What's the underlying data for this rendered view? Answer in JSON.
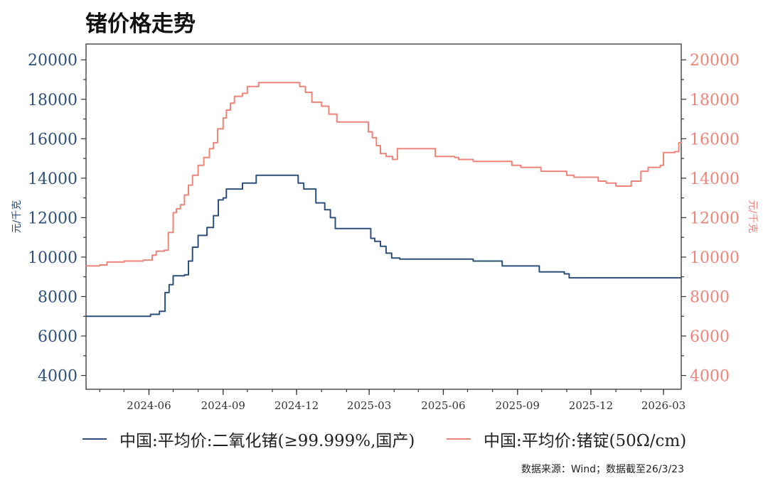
{
  "title": "锗价格走势",
  "source": "数据来源：Wind；数据截至26/3/23",
  "colors": {
    "left": "#2e4f7a",
    "right": "#ee8479"
  },
  "chart_data": {
    "type": "line",
    "title": "锗价格走势",
    "ylabel_left": "元/千克",
    "ylabel_right": "元/千克",
    "ylim": [
      3300,
      20800
    ],
    "yticks": [
      4000,
      6000,
      8000,
      10000,
      12000,
      14000,
      16000,
      18000,
      20000
    ],
    "xlim": [
      "2024-03-15",
      "2026-03-23"
    ],
    "xticks": [
      "2024-06",
      "2024-09",
      "2024-12",
      "2025-03",
      "2025-06",
      "2025-09",
      "2025-12",
      "2026-03"
    ],
    "legend_position": "bottom",
    "series": [
      {
        "name": "中国:平均价:二氧化锗(≥99.999%,国产)",
        "axis": "left",
        "points": [
          [
            "2024-03-15",
            7000
          ],
          [
            "2024-05-31",
            7000
          ],
          [
            "2024-06-03",
            7100
          ],
          [
            "2024-06-14",
            7250
          ],
          [
            "2024-06-21",
            8200
          ],
          [
            "2024-06-26",
            8600
          ],
          [
            "2024-07-01",
            9050
          ],
          [
            "2024-07-15",
            9100
          ],
          [
            "2024-07-20",
            9800
          ],
          [
            "2024-07-25",
            10500
          ],
          [
            "2024-08-01",
            11100
          ],
          [
            "2024-08-12",
            11500
          ],
          [
            "2024-08-20",
            12100
          ],
          [
            "2024-08-26",
            12900
          ],
          [
            "2024-09-01",
            13000
          ],
          [
            "2024-09-05",
            13450
          ],
          [
            "2024-09-25",
            13750
          ],
          [
            "2024-10-12",
            14150
          ],
          [
            "2024-11-28",
            14150
          ],
          [
            "2024-12-03",
            13750
          ],
          [
            "2024-12-10",
            13450
          ],
          [
            "2024-12-25",
            12750
          ],
          [
            "2025-01-05",
            12400
          ],
          [
            "2025-01-12",
            12000
          ],
          [
            "2025-01-18",
            11450
          ],
          [
            "2025-02-28",
            11450
          ],
          [
            "2025-03-03",
            10950
          ],
          [
            "2025-03-08",
            10800
          ],
          [
            "2025-03-15",
            10550
          ],
          [
            "2025-03-22",
            10200
          ],
          [
            "2025-03-29",
            9950
          ],
          [
            "2025-04-08",
            9900
          ],
          [
            "2025-07-05",
            9900
          ],
          [
            "2025-07-08",
            9800
          ],
          [
            "2025-08-10",
            9800
          ],
          [
            "2025-08-13",
            9550
          ],
          [
            "2025-09-25",
            9550
          ],
          [
            "2025-09-28",
            9250
          ],
          [
            "2025-10-25",
            9250
          ],
          [
            "2025-10-29",
            9150
          ],
          [
            "2025-11-04",
            8950
          ],
          [
            "2026-03-23",
            8950
          ]
        ]
      },
      {
        "name": "中国:平均价:锗锭(50Ω/cm)",
        "axis": "right",
        "points": [
          [
            "2024-03-15",
            9550
          ],
          [
            "2024-04-01",
            9600
          ],
          [
            "2024-04-10",
            9750
          ],
          [
            "2024-05-01",
            9800
          ],
          [
            "2024-05-25",
            9850
          ],
          [
            "2024-06-05",
            10100
          ],
          [
            "2024-06-10",
            10300
          ],
          [
            "2024-06-20",
            10350
          ],
          [
            "2024-06-25",
            11250
          ],
          [
            "2024-07-01",
            12250
          ],
          [
            "2024-07-05",
            12450
          ],
          [
            "2024-07-10",
            12650
          ],
          [
            "2024-07-15",
            13150
          ],
          [
            "2024-07-20",
            13650
          ],
          [
            "2024-07-25",
            14150
          ],
          [
            "2024-08-01",
            14650
          ],
          [
            "2024-08-08",
            15050
          ],
          [
            "2024-08-15",
            15500
          ],
          [
            "2024-08-20",
            15800
          ],
          [
            "2024-08-25",
            16500
          ],
          [
            "2024-09-01",
            17050
          ],
          [
            "2024-09-05",
            17450
          ],
          [
            "2024-09-10",
            17800
          ],
          [
            "2024-09-15",
            18150
          ],
          [
            "2024-09-25",
            18300
          ],
          [
            "2024-10-01",
            18650
          ],
          [
            "2024-10-15",
            18850
          ],
          [
            "2024-11-30",
            18850
          ],
          [
            "2024-12-05",
            18650
          ],
          [
            "2024-12-12",
            18350
          ],
          [
            "2024-12-20",
            17850
          ],
          [
            "2025-01-01",
            17650
          ],
          [
            "2025-01-10",
            17250
          ],
          [
            "2025-01-20",
            16850
          ],
          [
            "2025-02-20",
            16850
          ],
          [
            "2025-02-28",
            16350
          ],
          [
            "2025-03-05",
            16050
          ],
          [
            "2025-03-10",
            15650
          ],
          [
            "2025-03-15",
            15250
          ],
          [
            "2025-03-22",
            15100
          ],
          [
            "2025-03-30",
            14950
          ],
          [
            "2025-04-05",
            15500
          ],
          [
            "2025-05-15",
            15500
          ],
          [
            "2025-05-22",
            15100
          ],
          [
            "2025-06-15",
            15050
          ],
          [
            "2025-06-20",
            14950
          ],
          [
            "2025-07-03",
            14950
          ],
          [
            "2025-07-08",
            14850
          ],
          [
            "2025-08-25",
            14650
          ],
          [
            "2025-09-05",
            14550
          ],
          [
            "2025-09-25",
            14550
          ],
          [
            "2025-09-30",
            14350
          ],
          [
            "2025-10-25",
            14350
          ],
          [
            "2025-11-01",
            14150
          ],
          [
            "2025-11-10",
            14050
          ],
          [
            "2025-12-05",
            14050
          ],
          [
            "2025-12-10",
            13850
          ],
          [
            "2025-12-20",
            13750
          ],
          [
            "2026-01-01",
            13600
          ],
          [
            "2026-01-15",
            13600
          ],
          [
            "2026-01-20",
            13850
          ],
          [
            "2026-02-01",
            14350
          ],
          [
            "2026-02-10",
            14550
          ],
          [
            "2026-02-25",
            14650
          ],
          [
            "2026-03-01",
            15300
          ],
          [
            "2026-03-15",
            15350
          ],
          [
            "2026-03-20",
            15800
          ],
          [
            "2026-03-23",
            15850
          ]
        ]
      }
    ]
  }
}
